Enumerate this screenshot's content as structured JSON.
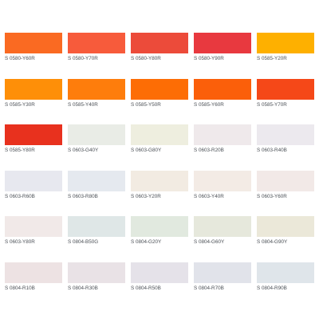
{
  "swatches": [
    {
      "code": "S 0580-Y60R",
      "color": "#fa6a22"
    },
    {
      "code": "S 0580-Y70R",
      "color": "#f75b3b"
    },
    {
      "code": "S 0580-Y80R",
      "color": "#ec4b3a"
    },
    {
      "code": "S 0580-Y90R",
      "color": "#e8393f"
    },
    {
      "code": "S 0585-Y20R",
      "color": "#feb000"
    },
    {
      "code": "S 0585-Y30R",
      "color": "#fe8f08"
    },
    {
      "code": "S 0585-Y40R",
      "color": "#fe7d0c"
    },
    {
      "code": "S 0585-Y50R",
      "color": "#fd6d05"
    },
    {
      "code": "S 0585-Y60R",
      "color": "#fb5f0a"
    },
    {
      "code": "S 0585-Y70R",
      "color": "#f54818"
    },
    {
      "code": "S 0585-Y80R",
      "color": "#e8311e"
    },
    {
      "code": "S 0603-G40Y",
      "color": "#e9ece6"
    },
    {
      "code": "S 0603-G80Y",
      "color": "#eeeedf"
    },
    {
      "code": "S 0603-R20B",
      "color": "#efe9eb"
    },
    {
      "code": "S 0603-R40B",
      "color": "#ece9ee"
    },
    {
      "code": "S 0603-R60B",
      "color": "#e7e8ef"
    },
    {
      "code": "S 0603-R80B",
      "color": "#e5e9ef"
    },
    {
      "code": "S 0603-Y20R",
      "color": "#f2ebe2"
    },
    {
      "code": "S 0603-Y40R",
      "color": "#f3ebe5"
    },
    {
      "code": "S 0603-Y60R",
      "color": "#f2e9e7"
    },
    {
      "code": "S 0603-Y80R",
      "color": "#f1e9e8"
    },
    {
      "code": "S 0804-B50G",
      "color": "#dfe7e7"
    },
    {
      "code": "S 0804-G20Y",
      "color": "#e1e9df"
    },
    {
      "code": "S 0804-G60Y",
      "color": "#e6e8dc"
    },
    {
      "code": "S 0804-G90Y",
      "color": "#ebe8d9"
    },
    {
      "code": "S 0804-R10B",
      "color": "#ede2e3"
    },
    {
      "code": "S 0804-R30B",
      "color": "#e9e2e6"
    },
    {
      "code": "S 0804-R50B",
      "color": "#e5e2e9"
    },
    {
      "code": "S 0804-R70B",
      "color": "#e1e3ea"
    },
    {
      "code": "S 0804-R90B",
      "color": "#dfe5ea"
    }
  ]
}
